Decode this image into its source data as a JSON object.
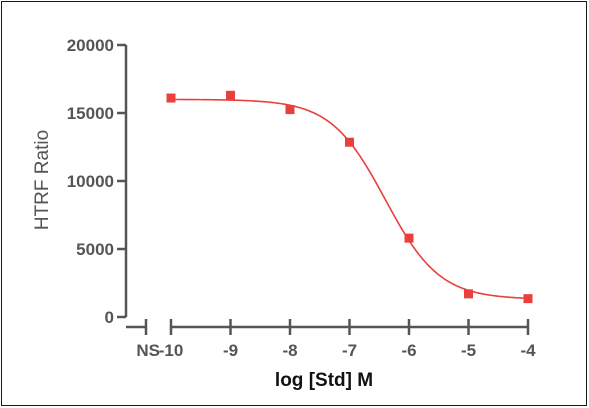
{
  "chart_data": {
    "type": "scatter",
    "title": "",
    "xlabel": "log [Std] M",
    "ylabel": "HTRF Ratio",
    "xlim": [
      -10,
      -4
    ],
    "ylim": [
      0,
      20000
    ],
    "x_ticks": [
      -10,
      -9,
      -8,
      -7,
      -6,
      -5,
      -4
    ],
    "x_tick_labels": [
      "-10",
      "-9",
      "-8",
      "-7",
      "-6",
      "-5",
      "-4"
    ],
    "x_extra_tick_label": "NS",
    "y_ticks": [
      0,
      5000,
      10000,
      15000,
      20000
    ],
    "y_tick_labels": [
      "0",
      "5000",
      "10000",
      "15000",
      "20000"
    ],
    "grid": false,
    "legend": "none",
    "series": [
      {
        "color": "#e8403c",
        "marker": "square",
        "x": [
          -10,
          -9,
          -8,
          -7,
          -6,
          -5,
          -4
        ],
        "y": [
          16100,
          16300,
          15250,
          12850,
          5800,
          1700,
          1350
        ],
        "fit": {
          "model": "4PL",
          "top": 16000,
          "bottom": 1300,
          "logEC50": -6.4,
          "hill": 0.95
        }
      }
    ]
  }
}
